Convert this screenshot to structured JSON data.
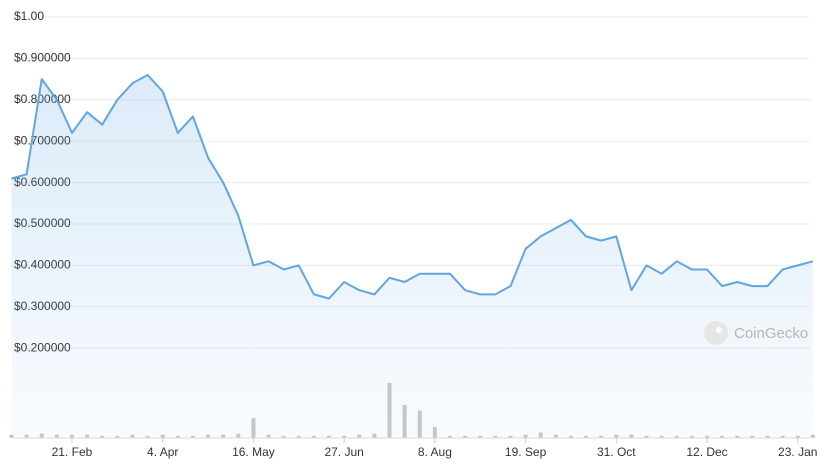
{
  "chart_data": {
    "type": "line",
    "watermark": "CoinGecko",
    "categories": [
      null,
      null,
      null,
      null,
      "21. Feb",
      null,
      null,
      null,
      null,
      null,
      "4. Apr",
      null,
      null,
      null,
      null,
      null,
      "16. May",
      null,
      null,
      null,
      null,
      null,
      "27. Jun",
      null,
      null,
      null,
      null,
      null,
      "8. Aug",
      null,
      null,
      null,
      null,
      null,
      "19. Sep",
      null,
      null,
      null,
      null,
      null,
      "31. Oct",
      null,
      null,
      null,
      null,
      null,
      "12. Dec",
      null,
      null,
      null,
      null,
      null,
      "23. Jan",
      null
    ],
    "series": [
      {
        "color": "#5fa6e3",
        "values": [
          0.61,
          0.62,
          0.85,
          0.8,
          0.72,
          0.77,
          0.74,
          0.8,
          0.84,
          0.86,
          0.82,
          0.72,
          0.76,
          0.66,
          0.6,
          0.52,
          0.4,
          0.41,
          0.39,
          0.4,
          0.33,
          0.32,
          0.36,
          0.34,
          0.33,
          0.37,
          0.36,
          0.38,
          0.38,
          0.38,
          0.34,
          0.33,
          0.33,
          0.35,
          0.44,
          0.47,
          0.49,
          0.51,
          0.47,
          0.46,
          0.47,
          0.34,
          0.4,
          0.38,
          0.41,
          0.39,
          0.39,
          0.35,
          0.36,
          0.35,
          0.35,
          0.39,
          0.4,
          0.41
        ]
      },
      {
        "color": "#c8c8c8",
        "values": [
          3,
          3,
          4,
          3,
          3,
          3,
          2,
          2,
          3,
          2,
          3,
          2,
          2,
          3,
          3,
          4,
          18,
          3,
          2,
          2,
          2,
          2,
          2,
          3,
          4,
          50,
          30,
          25,
          10,
          2,
          2,
          2,
          2,
          2,
          3,
          5,
          3,
          2,
          2,
          2,
          3,
          3,
          2,
          2,
          2,
          2,
          2,
          2,
          2,
          2,
          2,
          2,
          2,
          3
        ]
      }
    ],
    "ylim": [
      0,
      1.0
    ],
    "yticks": [
      {
        "value": 0.2,
        "label": "$0.200000"
      },
      {
        "value": 0.3,
        "label": "$0.300000"
      },
      {
        "value": 0.4,
        "label": "$0.400000"
      },
      {
        "value": 0.5,
        "label": "$0.500000"
      },
      {
        "value": 0.6,
        "label": "$0.600000"
      },
      {
        "value": 0.7,
        "label": "$0.700000"
      },
      {
        "value": 0.8,
        "label": "$0.800000"
      },
      {
        "value": 0.9,
        "label": "$0.900000"
      },
      {
        "value": 1.0,
        "label": "$1.00"
      }
    ],
    "grid": true
  }
}
